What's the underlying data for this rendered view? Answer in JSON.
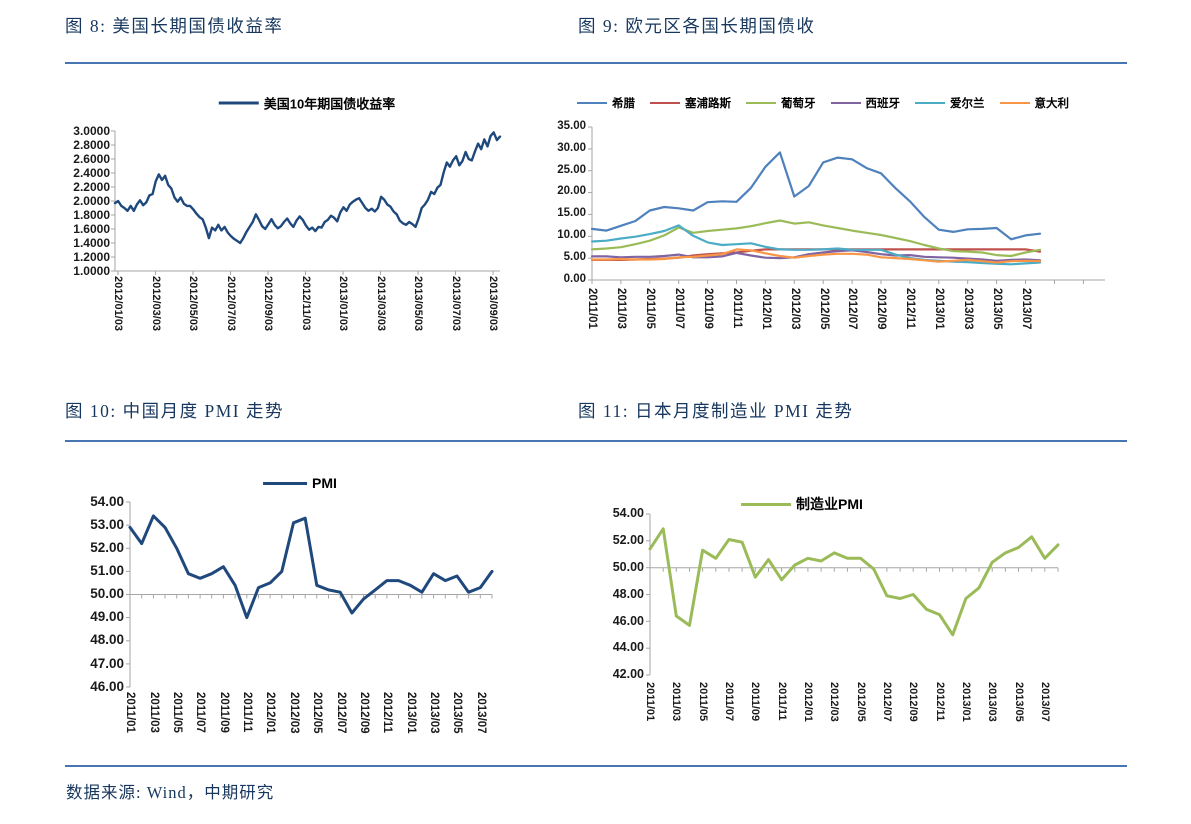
{
  "page": {
    "footer": {
      "source_label": "数据来源: Wind，中期研究"
    }
  },
  "colors": {
    "caption": "#17375E",
    "rule": "#4677B2",
    "axis": "#A6A6A6",
    "tick_text": "#1a1a1a",
    "navy_series": "#1F497D",
    "green_series": "#9BBB59"
  },
  "chart_data": [
    {
      "type": "line",
      "title": "图 8: 美国长期国债收益率",
      "ylim": [
        1.0,
        3.0
      ],
      "y_tick_labels": [
        "1.0000",
        "1.2000",
        "1.4000",
        "1.6000",
        "1.8000",
        "2.0000",
        "2.2000",
        "2.4000",
        "2.6000",
        "2.8000",
        "3.0000"
      ],
      "x_labels": [
        "2012/01/03",
        "2012/03/03",
        "2012/05/03",
        "2012/07/03",
        "2012/09/03",
        "2012/11/03",
        "2013/01/03",
        "2013/03/03",
        "2013/05/03",
        "2013/07/03",
        "2013/09/03"
      ],
      "grid": false,
      "legend_position": "top",
      "series": [
        {
          "name": "美国10年期国债收益率",
          "color": "#1F497D",
          "values": [
            1.97,
            2.0,
            1.93,
            1.9,
            1.86,
            1.93,
            1.86,
            1.95,
            2.01,
            1.94,
            1.98,
            2.08,
            2.1,
            2.28,
            2.38,
            2.3,
            2.36,
            2.23,
            2.18,
            2.05,
            1.99,
            2.05,
            1.96,
            1.93,
            1.93,
            1.88,
            1.82,
            1.77,
            1.74,
            1.62,
            1.47,
            1.62,
            1.58,
            1.66,
            1.58,
            1.63,
            1.55,
            1.5,
            1.46,
            1.43,
            1.4,
            1.47,
            1.56,
            1.63,
            1.7,
            1.81,
            1.73,
            1.64,
            1.6,
            1.67,
            1.74,
            1.66,
            1.61,
            1.64,
            1.7,
            1.75,
            1.68,
            1.63,
            1.72,
            1.78,
            1.73,
            1.65,
            1.59,
            1.62,
            1.57,
            1.63,
            1.62,
            1.7,
            1.73,
            1.79,
            1.76,
            1.71,
            1.84,
            1.91,
            1.86,
            1.95,
            1.99,
            2.02,
            2.04,
            1.97,
            1.9,
            1.86,
            1.89,
            1.85,
            1.9,
            2.06,
            2.02,
            1.95,
            1.92,
            1.85,
            1.81,
            1.72,
            1.68,
            1.66,
            1.7,
            1.67,
            1.63,
            1.75,
            1.9,
            1.95,
            2.02,
            2.13,
            2.1,
            2.19,
            2.23,
            2.41,
            2.55,
            2.49,
            2.58,
            2.64,
            2.51,
            2.57,
            2.7,
            2.6,
            2.58,
            2.71,
            2.82,
            2.74,
            2.88,
            2.78,
            2.93,
            2.98,
            2.87,
            2.92
          ]
        }
      ]
    },
    {
      "type": "line",
      "title": "图 9: 欧元区各国长期国债收",
      "ylim": [
        0,
        35
      ],
      "y_tick_labels": [
        "0.00",
        "5.00",
        "10.00",
        "15.00",
        "20.00",
        "25.00",
        "30.00",
        "35.00"
      ],
      "x_labels": [
        "2011/01",
        "2011/03",
        "2011/05",
        "2011/07",
        "2011/09",
        "2011/11",
        "2012/01",
        "2012/03",
        "2012/05",
        "2012/07",
        "2012/09",
        "2012/11",
        "2013/01",
        "2013/03",
        "2013/05",
        "2013/07"
      ],
      "grid": false,
      "legend_position": "top",
      "series": [
        {
          "name": "希腊",
          "color": "#4F81BD",
          "values": [
            11.7,
            11.3,
            12.4,
            13.5,
            15.9,
            16.7,
            16.4,
            15.9,
            17.8,
            18.0,
            17.9,
            21.1,
            25.9,
            29.2,
            19.1,
            21.5,
            26.9,
            28.0,
            27.6,
            25.6,
            24.4,
            21.0,
            18.0,
            14.4,
            11.5,
            11.0,
            11.6,
            11.7,
            11.9,
            9.3,
            10.2,
            10.6
          ]
        },
        {
          "name": "塞浦路斯",
          "color": "#C0504D",
          "values": [
            4.6,
            4.6,
            4.6,
            4.7,
            4.8,
            4.9,
            5.1,
            5.6,
            5.9,
            6.1,
            6.3,
            6.7,
            7.0,
            7.0,
            7.0,
            7.0,
            7.0,
            7.0,
            7.0,
            7.0,
            7.0,
            7.0,
            7.0,
            7.0,
            7.0,
            7.0,
            7.0,
            7.0,
            7.0,
            7.0,
            7.0,
            6.5
          ]
        },
        {
          "name": "葡萄牙",
          "color": "#9BBB59",
          "values": [
            7.0,
            7.2,
            7.5,
            8.2,
            9.0,
            10.2,
            12.0,
            10.8,
            11.2,
            11.5,
            11.8,
            12.3,
            13.0,
            13.6,
            12.9,
            13.2,
            12.5,
            11.9,
            11.3,
            10.8,
            10.3,
            9.6,
            8.9,
            8.0,
            7.2,
            6.6,
            6.5,
            6.3,
            5.7,
            5.5,
            6.3,
            6.9
          ]
        },
        {
          "name": "西班牙",
          "color": "#8064A2",
          "values": [
            5.4,
            5.4,
            5.2,
            5.3,
            5.3,
            5.5,
            5.8,
            5.2,
            5.2,
            5.4,
            6.2,
            5.6,
            5.1,
            5.0,
            5.2,
            5.9,
            6.3,
            6.6,
            6.8,
            6.4,
            5.9,
            5.6,
            5.7,
            5.3,
            5.2,
            5.1,
            4.9,
            4.7,
            4.4,
            4.6,
            4.7,
            4.5
          ]
        },
        {
          "name": "爱尔兰",
          "color": "#4BACC6",
          "values": [
            8.8,
            9.0,
            9.5,
            9.9,
            10.5,
            11.2,
            12.5,
            10.1,
            8.6,
            8.0,
            8.2,
            8.4,
            7.6,
            7.0,
            6.9,
            6.9,
            7.0,
            7.2,
            6.9,
            6.9,
            6.9,
            5.8,
            5.0,
            4.6,
            4.4,
            4.2,
            4.1,
            3.9,
            3.7,
            3.6,
            3.8,
            4.0
          ]
        },
        {
          "name": "意大利",
          "color": "#F79646",
          "values": [
            4.7,
            4.7,
            4.8,
            4.7,
            4.7,
            4.8,
            5.2,
            5.3,
            5.6,
            5.9,
            7.0,
            6.8,
            6.1,
            5.5,
            5.1,
            5.5,
            5.8,
            6.0,
            6.0,
            5.8,
            5.2,
            5.0,
            4.8,
            4.5,
            4.2,
            4.4,
            4.6,
            4.3,
            4.0,
            4.3,
            4.4,
            4.3
          ]
        }
      ]
    },
    {
      "type": "line",
      "title": "图 10: 中国月度 PMI 走势",
      "ylim": [
        46,
        54
      ],
      "y_tick_labels": [
        "46.00",
        "47.00",
        "48.00",
        "49.00",
        "50.00",
        "51.00",
        "52.00",
        "53.00",
        "54.00"
      ],
      "x_labels": [
        "2011/01",
        "2011/03",
        "2011/05",
        "2011/07",
        "2011/09",
        "2011/11",
        "2012/01",
        "2012/03",
        "2012/05",
        "2012/07",
        "2012/09",
        "2012/11",
        "2013/01",
        "2013/03",
        "2013/05",
        "2013/07"
      ],
      "grid": true,
      "category_axis_at": 50,
      "legend_position": "top",
      "series": [
        {
          "name": "PMI",
          "color": "#1F497D",
          "values": [
            52.9,
            52.2,
            53.4,
            52.9,
            52.0,
            50.9,
            50.7,
            50.9,
            51.2,
            50.4,
            49.0,
            50.3,
            50.5,
            51.0,
            53.1,
            53.3,
            50.4,
            50.2,
            50.1,
            49.2,
            49.8,
            50.2,
            50.6,
            50.6,
            50.4,
            50.1,
            50.9,
            50.6,
            50.8,
            50.1,
            50.3,
            51.0
          ]
        }
      ]
    },
    {
      "type": "line",
      "title": "图 11: 日本月度制造业 PMI 走势",
      "ylim": [
        42,
        54
      ],
      "y_tick_labels": [
        "42.00",
        "44.00",
        "46.00",
        "48.00",
        "50.00",
        "52.00",
        "54.00"
      ],
      "x_labels": [
        "2011/01",
        "2011/03",
        "2011/05",
        "2011/07",
        "2011/09",
        "2011/11",
        "2012/01",
        "2012/03",
        "2012/05",
        "2012/07",
        "2012/09",
        "2012/11",
        "2013/01",
        "2013/03",
        "2013/05",
        "2013/07"
      ],
      "grid": true,
      "category_axis_at": 50,
      "legend_position": "top",
      "series": [
        {
          "name": "制造业PMI",
          "color": "#9BBB59",
          "values": [
            51.4,
            52.9,
            46.4,
            45.7,
            51.3,
            50.7,
            52.1,
            51.9,
            49.3,
            50.6,
            49.1,
            50.2,
            50.7,
            50.5,
            51.1,
            50.7,
            50.7,
            49.9,
            47.9,
            47.7,
            48.0,
            46.9,
            46.5,
            45.0,
            47.7,
            48.5,
            50.4,
            51.1,
            51.5,
            52.3,
            50.7,
            51.7
          ]
        }
      ]
    }
  ]
}
